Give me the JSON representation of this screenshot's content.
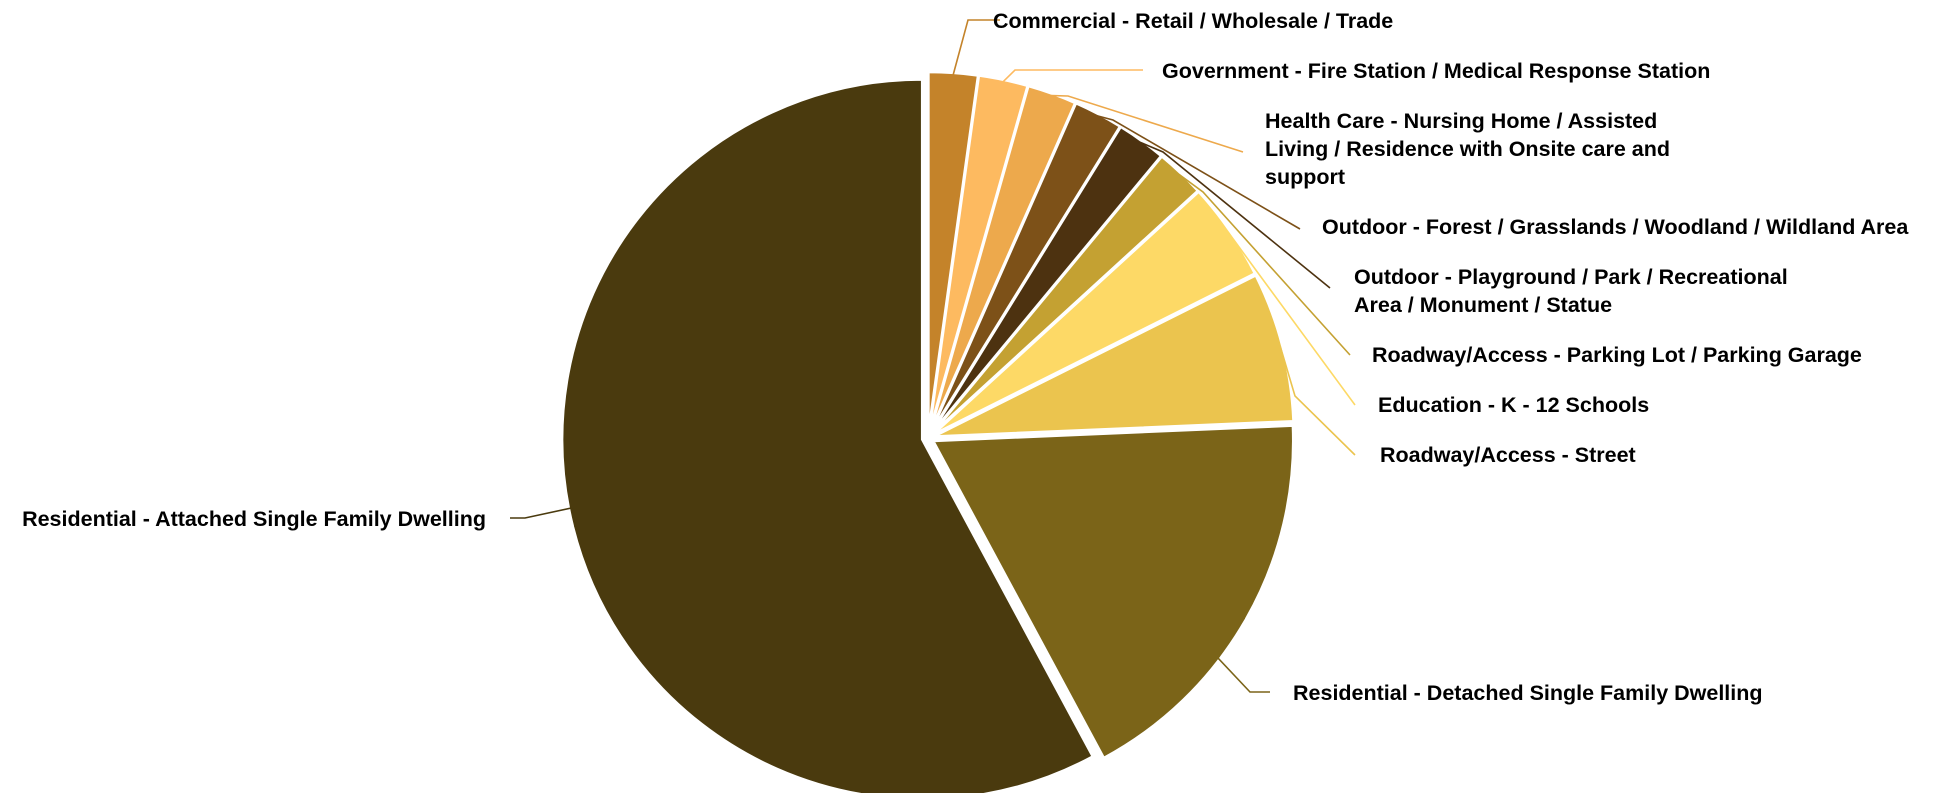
{
  "chart_data": {
    "type": "pie",
    "title": "",
    "slices": [
      {
        "label": "Commercial - Retail / Wholesale / Trade",
        "value": 2.2,
        "color": "#C4832A"
      },
      {
        "label": "Government - Fire Station / Medical Response Station",
        "value": 2.2,
        "color": "#FDBA60"
      },
      {
        "label": "Health Care - Nursing Home / Assisted Living / Residence with Onsite care and support",
        "value": 2.2,
        "color": "#EDA94C"
      },
      {
        "label": "Outdoor - Forest / Grasslands / Woodland / Wildland Area",
        "value": 2.2,
        "color": "#7D5118"
      },
      {
        "label": "Outdoor - Playground / Park / Recreational Area / Monument / Statue",
        "value": 2.2,
        "color": "#4D3210"
      },
      {
        "label": "Roadway/Access - Parking Lot / Parking Garage",
        "value": 2.2,
        "color": "#C4A132"
      },
      {
        "label": "Education - K - 12 Schools",
        "value": 4.4,
        "color": "#FDD966"
      },
      {
        "label": "Roadway/Access - Street",
        "value": 6.7,
        "color": "#EBC44E"
      },
      {
        "label": "Residential - Detached Single Family Dwelling",
        "value": 17.8,
        "color": "#7B6418"
      },
      {
        "label": "Residential - Attached Single Family Dwelling",
        "value": 57.8,
        "color": "#4A3A0E"
      }
    ],
    "legend": "none"
  }
}
